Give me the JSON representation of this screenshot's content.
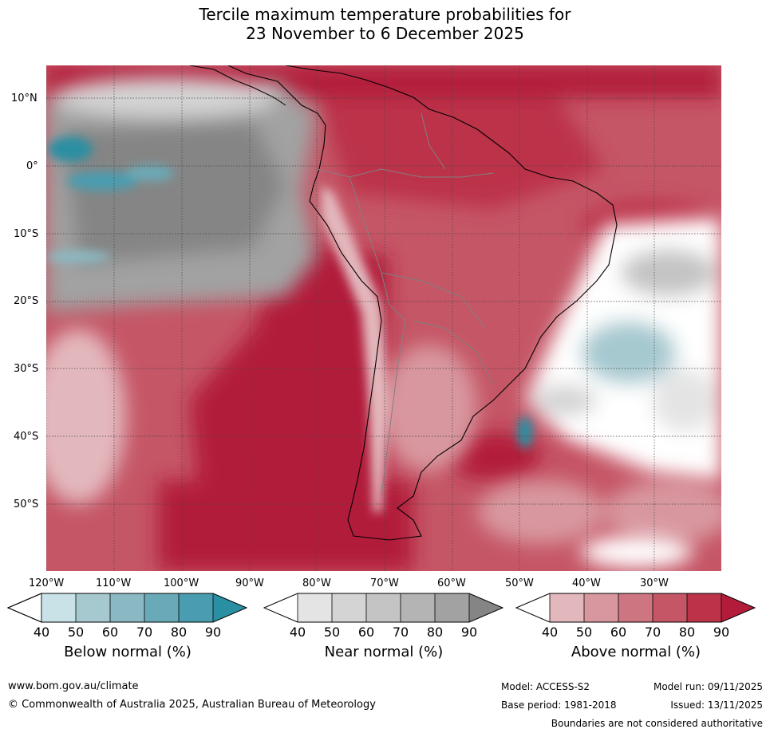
{
  "title_line1": "Tercile maximum temperature probabilities for",
  "title_line2": "23 November to 6 December 2025",
  "lat_labels": [
    "10°N",
    "0°",
    "10°S",
    "20°S",
    "30°S",
    "40°S",
    "50°S"
  ],
  "lon_labels": [
    "120°W",
    "110°W",
    "100°W",
    "90°W",
    "80°W",
    "70°W",
    "60°W",
    "50°W",
    "40°W",
    "30°W"
  ],
  "colorbars": [
    {
      "title": "Below normal (%)",
      "ticks": [
        "40",
        "50",
        "60",
        "70",
        "80",
        "90"
      ],
      "colors": [
        "#ffffff",
        "#c9e2e8",
        "#a6c9d0",
        "#8bb9c3",
        "#6aaab8",
        "#4a9db0",
        "#2a8fa2"
      ]
    },
    {
      "title": "Near normal (%)",
      "ticks": [
        "40",
        "50",
        "60",
        "70",
        "80",
        "90"
      ],
      "colors": [
        "#ffffff",
        "#e4e4e4",
        "#d4d4d4",
        "#c4c4c4",
        "#b4b4b4",
        "#a2a2a2",
        "#858585"
      ]
    },
    {
      "title": "Above normal (%)",
      "ticks": [
        "40",
        "50",
        "60",
        "70",
        "80",
        "90"
      ],
      "colors": [
        "#ffffff",
        "#e3b8bd",
        "#d8979f",
        "#cd7581",
        "#c55666",
        "#bc3249",
        "#b21c3a"
      ]
    }
  ],
  "footer": {
    "url": "www.bom.gov.au/climate",
    "copyright": "© Commonwealth of Australia 2025, Australian Bureau of Meteorology",
    "model": "Model: ACCESS-S2",
    "model_run": "Model run: 09/11/2025",
    "base_period": "Base period: 1981-2018",
    "issued": "Issued: 13/11/2025",
    "disclaimer": "Boundaries are not considered authoritative"
  },
  "colors": {
    "above_dark": "#b21c3a",
    "above_mid": "#c55666",
    "above_light": "#e3b8bd",
    "near_dark": "#858585",
    "near_mid": "#b4b4b4",
    "near_light": "#d4d4d4",
    "below_dark": "#2a8fa2",
    "below_light": "#a6c9d0"
  }
}
